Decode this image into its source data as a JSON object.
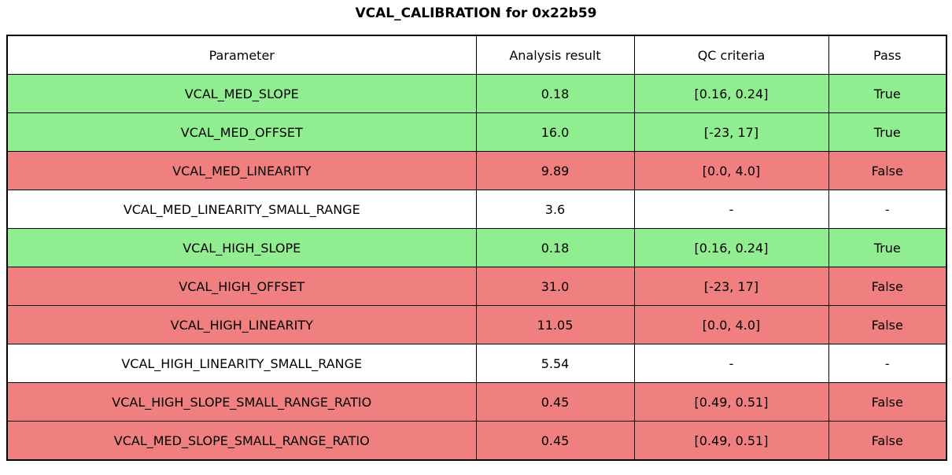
{
  "title": "VCAL_CALIBRATION for 0x22b59",
  "colors": {
    "pass_green": "#90ee90",
    "fail_red": "#f08080",
    "neutral_white": "#ffffff",
    "border_black": "#000000"
  },
  "chart_data": {
    "type": "table",
    "title": "VCAL_CALIBRATION for 0x22b59",
    "headers": [
      "Parameter",
      "Analysis result",
      "QC criteria",
      "Pass"
    ],
    "rows": [
      {
        "parameter": "VCAL_MED_SLOPE",
        "result": "0.18",
        "criteria": "[0.16, 0.24]",
        "pass": "True",
        "status": "pass"
      },
      {
        "parameter": "VCAL_MED_OFFSET",
        "result": "16.0",
        "criteria": "[-23, 17]",
        "pass": "True",
        "status": "pass"
      },
      {
        "parameter": "VCAL_MED_LINEARITY",
        "result": "9.89",
        "criteria": "[0.0, 4.0]",
        "pass": "False",
        "status": "fail"
      },
      {
        "parameter": "VCAL_MED_LINEARITY_SMALL_RANGE",
        "result": "3.6",
        "criteria": "-",
        "pass": "-",
        "status": "none"
      },
      {
        "parameter": "VCAL_HIGH_SLOPE",
        "result": "0.18",
        "criteria": "[0.16, 0.24]",
        "pass": "True",
        "status": "pass"
      },
      {
        "parameter": "VCAL_HIGH_OFFSET",
        "result": "31.0",
        "criteria": "[-23, 17]",
        "pass": "False",
        "status": "fail"
      },
      {
        "parameter": "VCAL_HIGH_LINEARITY",
        "result": "11.05",
        "criteria": "[0.0, 4.0]",
        "pass": "False",
        "status": "fail"
      },
      {
        "parameter": "VCAL_HIGH_LINEARITY_SMALL_RANGE",
        "result": "5.54",
        "criteria": "-",
        "pass": "-",
        "status": "none"
      },
      {
        "parameter": "VCAL_HIGH_SLOPE_SMALL_RANGE_RATIO",
        "result": "0.45",
        "criteria": "[0.49, 0.51]",
        "pass": "False",
        "status": "fail"
      },
      {
        "parameter": "VCAL_MED_SLOPE_SMALL_RANGE_RATIO",
        "result": "0.45",
        "criteria": "[0.49, 0.51]",
        "pass": "False",
        "status": "fail"
      }
    ]
  }
}
